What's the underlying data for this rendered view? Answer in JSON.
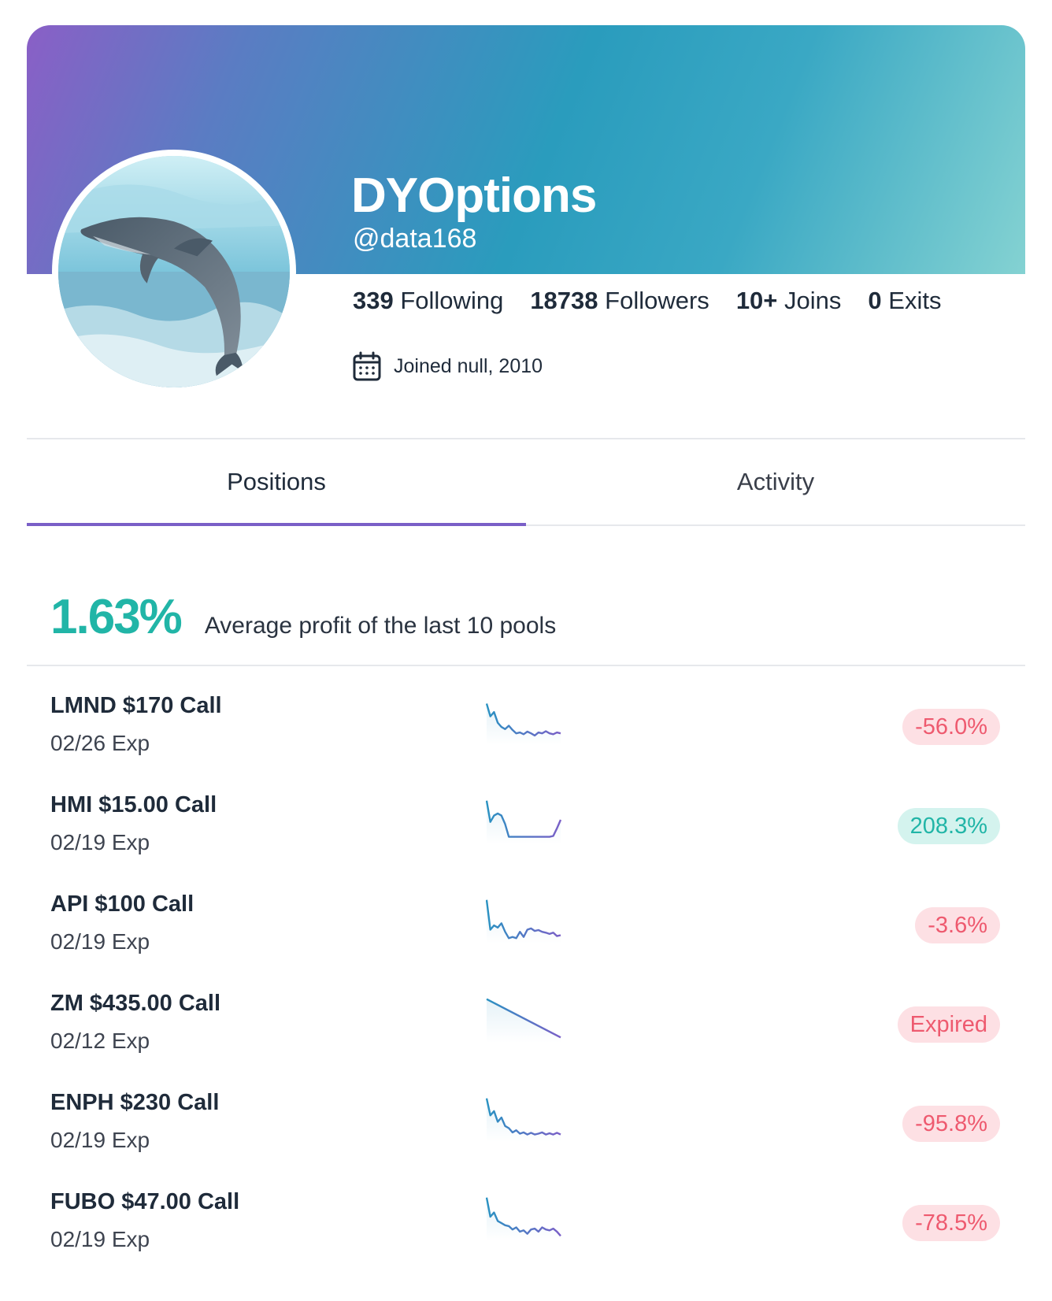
{
  "profile": {
    "display_name": "DYOptions",
    "handle": "@data168",
    "avatar_description_icon": "dolphin-avatar",
    "stats": {
      "following_count": "339",
      "following_label": "Following",
      "followers_count": "18738",
      "followers_label": "Followers",
      "joins_count": "10+",
      "joins_label": "Joins",
      "exits_count": "0",
      "exits_label": "Exits"
    },
    "joined_text": "Joined null, 2010",
    "joined_icon": "calendar-icon"
  },
  "tabs": [
    {
      "label": "Positions",
      "active": true
    },
    {
      "label": "Activity",
      "active": false
    }
  ],
  "summary": {
    "average_profit": "1.63%",
    "label": "Average profit of the last 10 pools"
  },
  "colors": {
    "accent": "#7a5fc7",
    "positive": "#21b5a7",
    "negative": "#ee5a6f",
    "positive_bg": "#d4f3ee",
    "negative_bg": "#fde0e4"
  },
  "positions": [
    {
      "title": "LMND $170 Call",
      "expiry": "02/26 Exp",
      "result": "-56.0%",
      "tone": "neg",
      "sparkline": [
        0.1,
        0.4,
        0.3,
        0.55,
        0.65,
        0.7,
        0.62,
        0.72,
        0.8,
        0.78,
        0.82,
        0.76,
        0.8,
        0.85,
        0.78,
        0.8,
        0.75,
        0.8,
        0.82,
        0.78,
        0.8
      ]
    },
    {
      "title": "HMI $15.00 Call",
      "expiry": "02/19 Exp",
      "result": "208.3%",
      "tone": "pos",
      "sparkline": [
        0.05,
        0.55,
        0.4,
        0.35,
        0.4,
        0.6,
        0.9,
        0.9,
        0.9,
        0.9,
        0.9,
        0.9,
        0.9,
        0.9,
        0.9,
        0.9,
        0.9,
        0.9,
        0.88,
        0.7,
        0.5
      ]
    },
    {
      "title": "API $100 Call",
      "expiry": "02/19 Exp",
      "result": "-3.6%",
      "tone": "neg",
      "sparkline": [
        0.05,
        0.75,
        0.65,
        0.7,
        0.6,
        0.8,
        0.95,
        0.92,
        0.95,
        0.8,
        0.92,
        0.75,
        0.72,
        0.78,
        0.76,
        0.8,
        0.82,
        0.85,
        0.82,
        0.9,
        0.88
      ]
    },
    {
      "title": "ZM $435.00 Call",
      "expiry": "02/12 Exp",
      "result": "Expired",
      "tone": "neg",
      "sparkline": [
        0.05,
        0.95
      ]
    },
    {
      "title": "ENPH $230 Call",
      "expiry": "02/19 Exp",
      "result": "-95.8%",
      "tone": "neg",
      "sparkline": [
        0.05,
        0.45,
        0.35,
        0.6,
        0.5,
        0.7,
        0.75,
        0.85,
        0.8,
        0.88,
        0.85,
        0.9,
        0.86,
        0.9,
        0.88,
        0.85,
        0.9,
        0.87,
        0.9,
        0.86,
        0.9
      ]
    },
    {
      "title": "FUBO $47.00 Call",
      "expiry": "02/19 Exp",
      "result": "-78.5%",
      "tone": "neg",
      "sparkline": [
        0.05,
        0.5,
        0.4,
        0.6,
        0.65,
        0.7,
        0.72,
        0.8,
        0.75,
        0.85,
        0.82,
        0.9,
        0.8,
        0.78,
        0.85,
        0.75,
        0.8,
        0.82,
        0.78,
        0.85,
        0.95
      ]
    }
  ]
}
